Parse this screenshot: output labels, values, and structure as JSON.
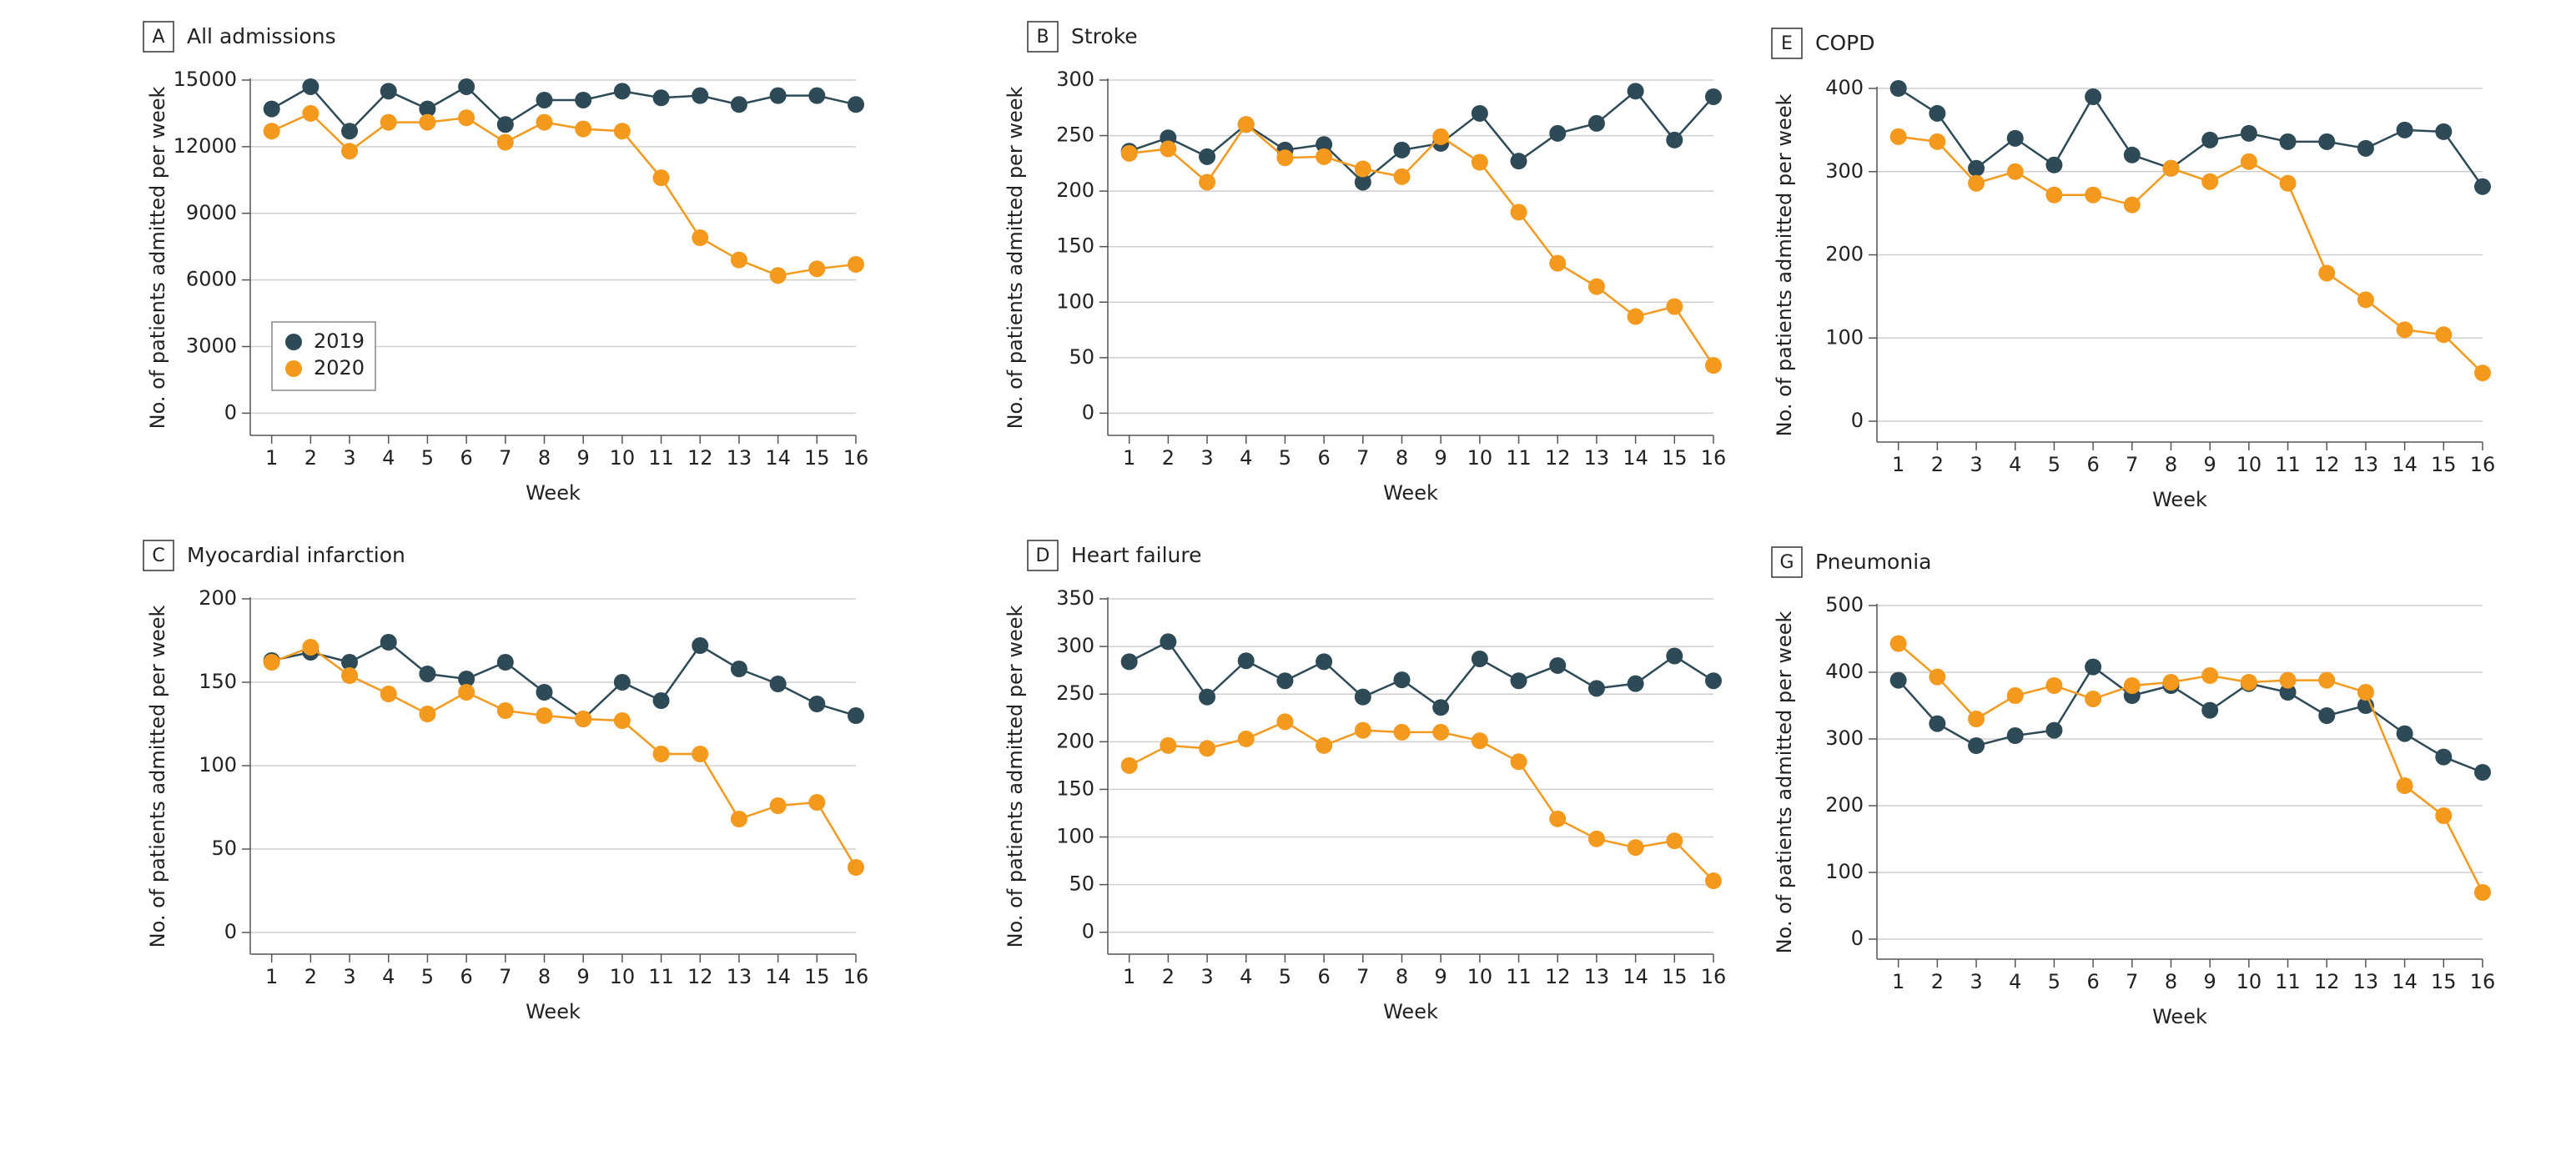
{
  "chart_data": [
    {
      "type": "line",
      "panel": "A",
      "title": "All admissions",
      "xlabel": "Week",
      "ylabel": "No. of patients admitted per week",
      "x": [
        1,
        2,
        3,
        4,
        5,
        6,
        7,
        8,
        9,
        10,
        11,
        12,
        13,
        14,
        15,
        16
      ],
      "xlim": [
        0.45,
        16
      ],
      "xticks": [
        1,
        2,
        3,
        4,
        5,
        6,
        7,
        8,
        9,
        10,
        11,
        12,
        13,
        14,
        15,
        16
      ],
      "ylim": [
        -1000,
        15000
      ],
      "yticks": [
        0,
        3000,
        6000,
        9000,
        12000,
        15000
      ],
      "grid": true,
      "legend": "left",
      "series": [
        {
          "name": "2019",
          "color": "#2e4a57",
          "values": [
            13700,
            14700,
            12700,
            14500,
            13700,
            14700,
            13000,
            14100,
            14100,
            14500,
            14200,
            14300,
            13900,
            14300,
            14300,
            13900
          ]
        },
        {
          "name": "2020",
          "color": "#f39a1e",
          "values": [
            12700,
            13500,
            11800,
            13100,
            13100,
            13300,
            12200,
            13100,
            12800,
            12700,
            10600,
            7900,
            6900,
            6200,
            6500,
            6700
          ]
        }
      ]
    },
    {
      "type": "line",
      "panel": "B",
      "title": "Stroke",
      "xlabel": "Week",
      "ylabel": "No. of patients admitted per week",
      "x": [
        1,
        2,
        3,
        4,
        5,
        6,
        7,
        8,
        9,
        10,
        11,
        12,
        13,
        14,
        15,
        16
      ],
      "xlim": [
        0.45,
        16
      ],
      "xticks": [
        1,
        2,
        3,
        4,
        5,
        6,
        7,
        8,
        9,
        10,
        11,
        12,
        13,
        14,
        15,
        16
      ],
      "ylim": [
        -20,
        300
      ],
      "yticks": [
        0,
        50,
        100,
        150,
        200,
        250,
        300
      ],
      "grid": true,
      "series": [
        {
          "color": "#2e4a57",
          "values": [
            236,
            248,
            231,
            260,
            237,
            242,
            208,
            237,
            243,
            270,
            227,
            252,
            261,
            290,
            246,
            285
          ]
        },
        {
          "color": "#f39a1e",
          "values": [
            234,
            238,
            208,
            260,
            230,
            231,
            220,
            213,
            249,
            226,
            181,
            135,
            114,
            87,
            96,
            43
          ]
        }
      ]
    },
    {
      "type": "line",
      "panel": "E",
      "title": "COPD",
      "xlabel": "Week",
      "ylabel": "No. of patients admitted per week",
      "x": [
        1,
        2,
        3,
        4,
        5,
        6,
        7,
        8,
        9,
        10,
        11,
        12,
        13,
        14,
        15,
        16
      ],
      "xlim": [
        0.45,
        16
      ],
      "xticks": [
        1,
        2,
        3,
        4,
        5,
        6,
        7,
        8,
        9,
        10,
        11,
        12,
        13,
        14,
        15,
        16
      ],
      "ylim": [
        -25,
        400
      ],
      "yticks": [
        0,
        100,
        200,
        300,
        400
      ],
      "grid": true,
      "series": [
        {
          "color": "#2e4a57",
          "values": [
            400,
            370,
            304,
            340,
            308,
            390,
            320,
            304,
            338,
            346,
            336,
            336,
            328,
            350,
            348,
            282
          ]
        },
        {
          "color": "#f39a1e",
          "values": [
            342,
            336,
            286,
            300,
            272,
            272,
            260,
            304,
            288,
            312,
            286,
            178,
            146,
            110,
            104,
            58
          ]
        }
      ]
    },
    {
      "type": "line",
      "panel": "C",
      "title": "Myocardial infarction",
      "xlabel": "Week",
      "ylabel": "No. of patients admitted per week",
      "x": [
        1,
        2,
        3,
        4,
        5,
        6,
        7,
        8,
        9,
        10,
        11,
        12,
        13,
        14,
        15,
        16
      ],
      "xlim": [
        0.45,
        16
      ],
      "xticks": [
        1,
        2,
        3,
        4,
        5,
        6,
        7,
        8,
        9,
        10,
        11,
        12,
        13,
        14,
        15,
        16
      ],
      "ylim": [
        -13,
        200
      ],
      "yticks": [
        0,
        50,
        100,
        150,
        200
      ],
      "grid": true,
      "series": [
        {
          "color": "#2e4a57",
          "values": [
            163,
            168,
            162,
            174,
            155,
            152,
            162,
            144,
            128,
            150,
            139,
            172,
            158,
            149,
            137,
            130
          ]
        },
        {
          "color": "#f39a1e",
          "values": [
            162,
            171,
            154,
            143,
            131,
            144,
            133,
            130,
            128,
            127,
            107,
            107,
            68,
            76,
            78,
            39
          ]
        }
      ]
    },
    {
      "type": "line",
      "panel": "D",
      "title": "Heart failure",
      "xlabel": "Week",
      "ylabel": "No. of patients admitted per week",
      "x": [
        1,
        2,
        3,
        4,
        5,
        6,
        7,
        8,
        9,
        10,
        11,
        12,
        13,
        14,
        15,
        16
      ],
      "xlim": [
        0.45,
        16
      ],
      "xticks": [
        1,
        2,
        3,
        4,
        5,
        6,
        7,
        8,
        9,
        10,
        11,
        12,
        13,
        14,
        15,
        16
      ],
      "ylim": [
        -23,
        350
      ],
      "yticks": [
        0,
        50,
        100,
        150,
        200,
        250,
        300,
        350
      ],
      "grid": true,
      "series": [
        {
          "color": "#2e4a57",
          "values": [
            284,
            305,
            247,
            285,
            264,
            284,
            247,
            265,
            236,
            287,
            264,
            280,
            256,
            261,
            290,
            264
          ]
        },
        {
          "color": "#f39a1e",
          "values": [
            175,
            196,
            193,
            203,
            221,
            196,
            212,
            210,
            210,
            201,
            179,
            119,
            98,
            89,
            96,
            54
          ]
        }
      ]
    },
    {
      "type": "line",
      "panel": "G",
      "title": "Pneumonia",
      "xlabel": "Week",
      "ylabel": "No. of patients admitted per week",
      "x": [
        1,
        2,
        3,
        4,
        5,
        6,
        7,
        8,
        9,
        10,
        11,
        12,
        13,
        14,
        15,
        16
      ],
      "xlim": [
        0.45,
        16
      ],
      "xticks": [
        1,
        2,
        3,
        4,
        5,
        6,
        7,
        8,
        9,
        10,
        11,
        12,
        13,
        14,
        15,
        16
      ],
      "ylim": [
        -30,
        500
      ],
      "yticks": [
        0,
        100,
        200,
        300,
        400,
        500
      ],
      "grid": true,
      "series": [
        {
          "color": "#2e4a57",
          "values": [
            388,
            323,
            290,
            305,
            313,
            408,
            365,
            380,
            343,
            383,
            370,
            335,
            350,
            308,
            273,
            250
          ]
        },
        {
          "color": "#f39a1e",
          "values": [
            443,
            393,
            330,
            365,
            380,
            360,
            380,
            385,
            395,
            385,
            388,
            388,
            370,
            230,
            185,
            70
          ]
        }
      ]
    }
  ]
}
